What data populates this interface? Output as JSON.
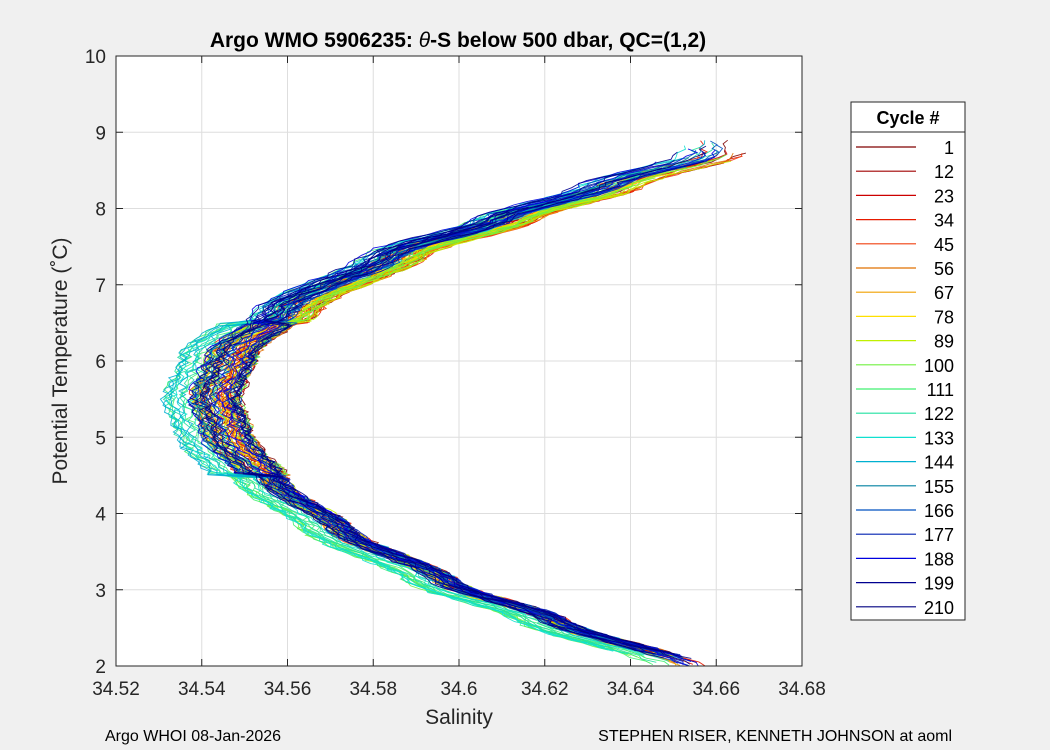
{
  "chart_data": {
    "type": "line",
    "title_prefix": "Argo WMO 5906235: ",
    "title_symbol": "θ",
    "title_suffix": "-S below 500 dbar,  QC=(1,2)",
    "xlabel": "Salinity",
    "ylabel": "Potential Temperature (˚C)",
    "xlim": [
      34.52,
      34.68
    ],
    "ylim": [
      2,
      10
    ],
    "xticks": [
      "34.52",
      "34.54",
      "34.56",
      "34.58",
      "34.6",
      "34.62",
      "34.64",
      "34.66",
      "34.68"
    ],
    "xtick_values": [
      34.52,
      34.54,
      34.56,
      34.58,
      34.6,
      34.62,
      34.64,
      34.66,
      34.68
    ],
    "yticks": [
      "2",
      "3",
      "4",
      "5",
      "6",
      "7",
      "8",
      "9",
      "10"
    ],
    "ytick_values": [
      2,
      3,
      4,
      5,
      6,
      7,
      8,
      9,
      10
    ],
    "grid": true,
    "legend": {
      "title": "Cycle #",
      "position": "right-outside",
      "entries": [
        {
          "label": "1",
          "color": "#800000"
        },
        {
          "label": "12",
          "color": "#a00000"
        },
        {
          "label": "23",
          "color": "#cc0000"
        },
        {
          "label": "34",
          "color": "#e61a00"
        },
        {
          "label": "45",
          "color": "#f04010"
        },
        {
          "label": "56",
          "color": "#e07000"
        },
        {
          "label": "67",
          "color": "#f0a000"
        },
        {
          "label": "78",
          "color": "#ffe000"
        },
        {
          "label": "89",
          "color": "#c0f000"
        },
        {
          "label": "100",
          "color": "#70f040"
        },
        {
          "label": "111",
          "color": "#40f070"
        },
        {
          "label": "122",
          "color": "#20e0a0"
        },
        {
          "label": "133",
          "color": "#10e0d0"
        },
        {
          "label": "144",
          "color": "#00b0d0"
        },
        {
          "label": "155",
          "color": "#0080a0"
        },
        {
          "label": "166",
          "color": "#0050c0"
        },
        {
          "label": "177",
          "color": "#0020b0"
        },
        {
          "label": "188",
          "color": "#0000e0"
        },
        {
          "label": "199",
          "color": "#000090"
        },
        {
          "label": "210",
          "color": "#000080"
        }
      ]
    },
    "profile_shape": {
      "description_points": [
        {
          "s": 34.652,
          "t": 2.0
        },
        {
          "s": 34.62,
          "t": 2.6
        },
        {
          "s": 34.595,
          "t": 3.1
        },
        {
          "s": 34.57,
          "t": 3.8
        },
        {
          "s": 34.555,
          "t": 4.4
        },
        {
          "s": 34.546,
          "t": 5.0
        },
        {
          "s": 34.543,
          "t": 5.5
        },
        {
          "s": 34.547,
          "t": 6.1
        },
        {
          "s": 34.56,
          "t": 6.7
        },
        {
          "s": 34.585,
          "t": 7.4
        },
        {
          "s": 34.61,
          "t": 7.85
        },
        {
          "s": 34.635,
          "t": 8.3
        },
        {
          "s": 34.658,
          "t": 8.7
        }
      ]
    }
  },
  "footer": {
    "left": "Argo WHOI 08-Jan-2026",
    "right": "STEPHEN RISER, KENNETH JOHNSON at aoml"
  }
}
